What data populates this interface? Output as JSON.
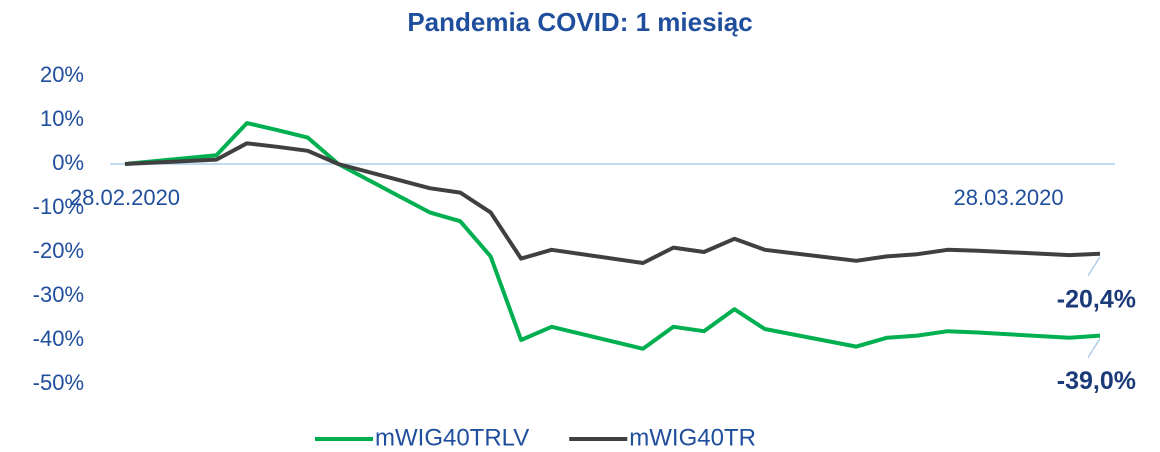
{
  "chart_data": {
    "type": "line",
    "title": "Pandemia COVID: 1 miesiąc",
    "categories": [
      "28.02.2020",
      null,
      null,
      null,
      null,
      null,
      null,
      null,
      null,
      null,
      null,
      null,
      null,
      null,
      null,
      null,
      null,
      null,
      null,
      null,
      null,
      null,
      null,
      null,
      null,
      null,
      null,
      null,
      null,
      "28.03.2020",
      null,
      null,
      null
    ],
    "series": [
      {
        "name": "mWIG40TRLV",
        "color": "#00b050",
        "values": [
          0,
          null,
          null,
          2,
          9.3,
          7.7,
          6,
          0,
          null,
          null,
          -11,
          -13,
          -21,
          -40,
          -37,
          null,
          null,
          -42,
          -37,
          -38,
          -33,
          -37.5,
          null,
          null,
          -41.5,
          -39.5,
          -39,
          -38,
          -38.3,
          null,
          null,
          -39.5,
          -39.0
        ],
        "value_labels": [
          null,
          null,
          null,
          null,
          null,
          null,
          null,
          null,
          null,
          null,
          null,
          null,
          null,
          null,
          null,
          null,
          null,
          null,
          null,
          null,
          null,
          null,
          null,
          null,
          null,
          null,
          null,
          null,
          null,
          null,
          null,
          null,
          "-39,0%"
        ]
      },
      {
        "name": "mWIG40TR",
        "color": "#404040",
        "values": [
          0,
          null,
          null,
          1,
          4.7,
          3.9,
          3,
          0,
          null,
          null,
          -5.5,
          -6.5,
          -11,
          -21.5,
          -19.5,
          null,
          null,
          -22.5,
          -19,
          -20,
          -17,
          -19.5,
          null,
          null,
          -22,
          -21,
          -20.5,
          -19.5,
          -19.7,
          null,
          null,
          -20.7,
          -20.4
        ],
        "value_labels": [
          null,
          null,
          null,
          null,
          null,
          null,
          null,
          null,
          null,
          null,
          null,
          null,
          null,
          null,
          null,
          null,
          null,
          null,
          null,
          null,
          null,
          null,
          null,
          null,
          null,
          null,
          null,
          null,
          null,
          null,
          null,
          null,
          "-20,4%"
        ]
      }
    ],
    "ylim": [
      -50,
      20
    ],
    "yticks": [
      {
        "value": -50,
        "label": "-50%"
      },
      {
        "value": -40,
        "label": "-40%"
      },
      {
        "value": -30,
        "label": "-30%"
      },
      {
        "value": -20,
        "label": "-20%"
      },
      {
        "value": -10,
        "label": "-10%"
      },
      {
        "value": 0,
        "label": "0%"
      },
      {
        "value": 10,
        "label": "10%"
      },
      {
        "value": 20,
        "label": "20%"
      }
    ],
    "legend": "bottom"
  }
}
